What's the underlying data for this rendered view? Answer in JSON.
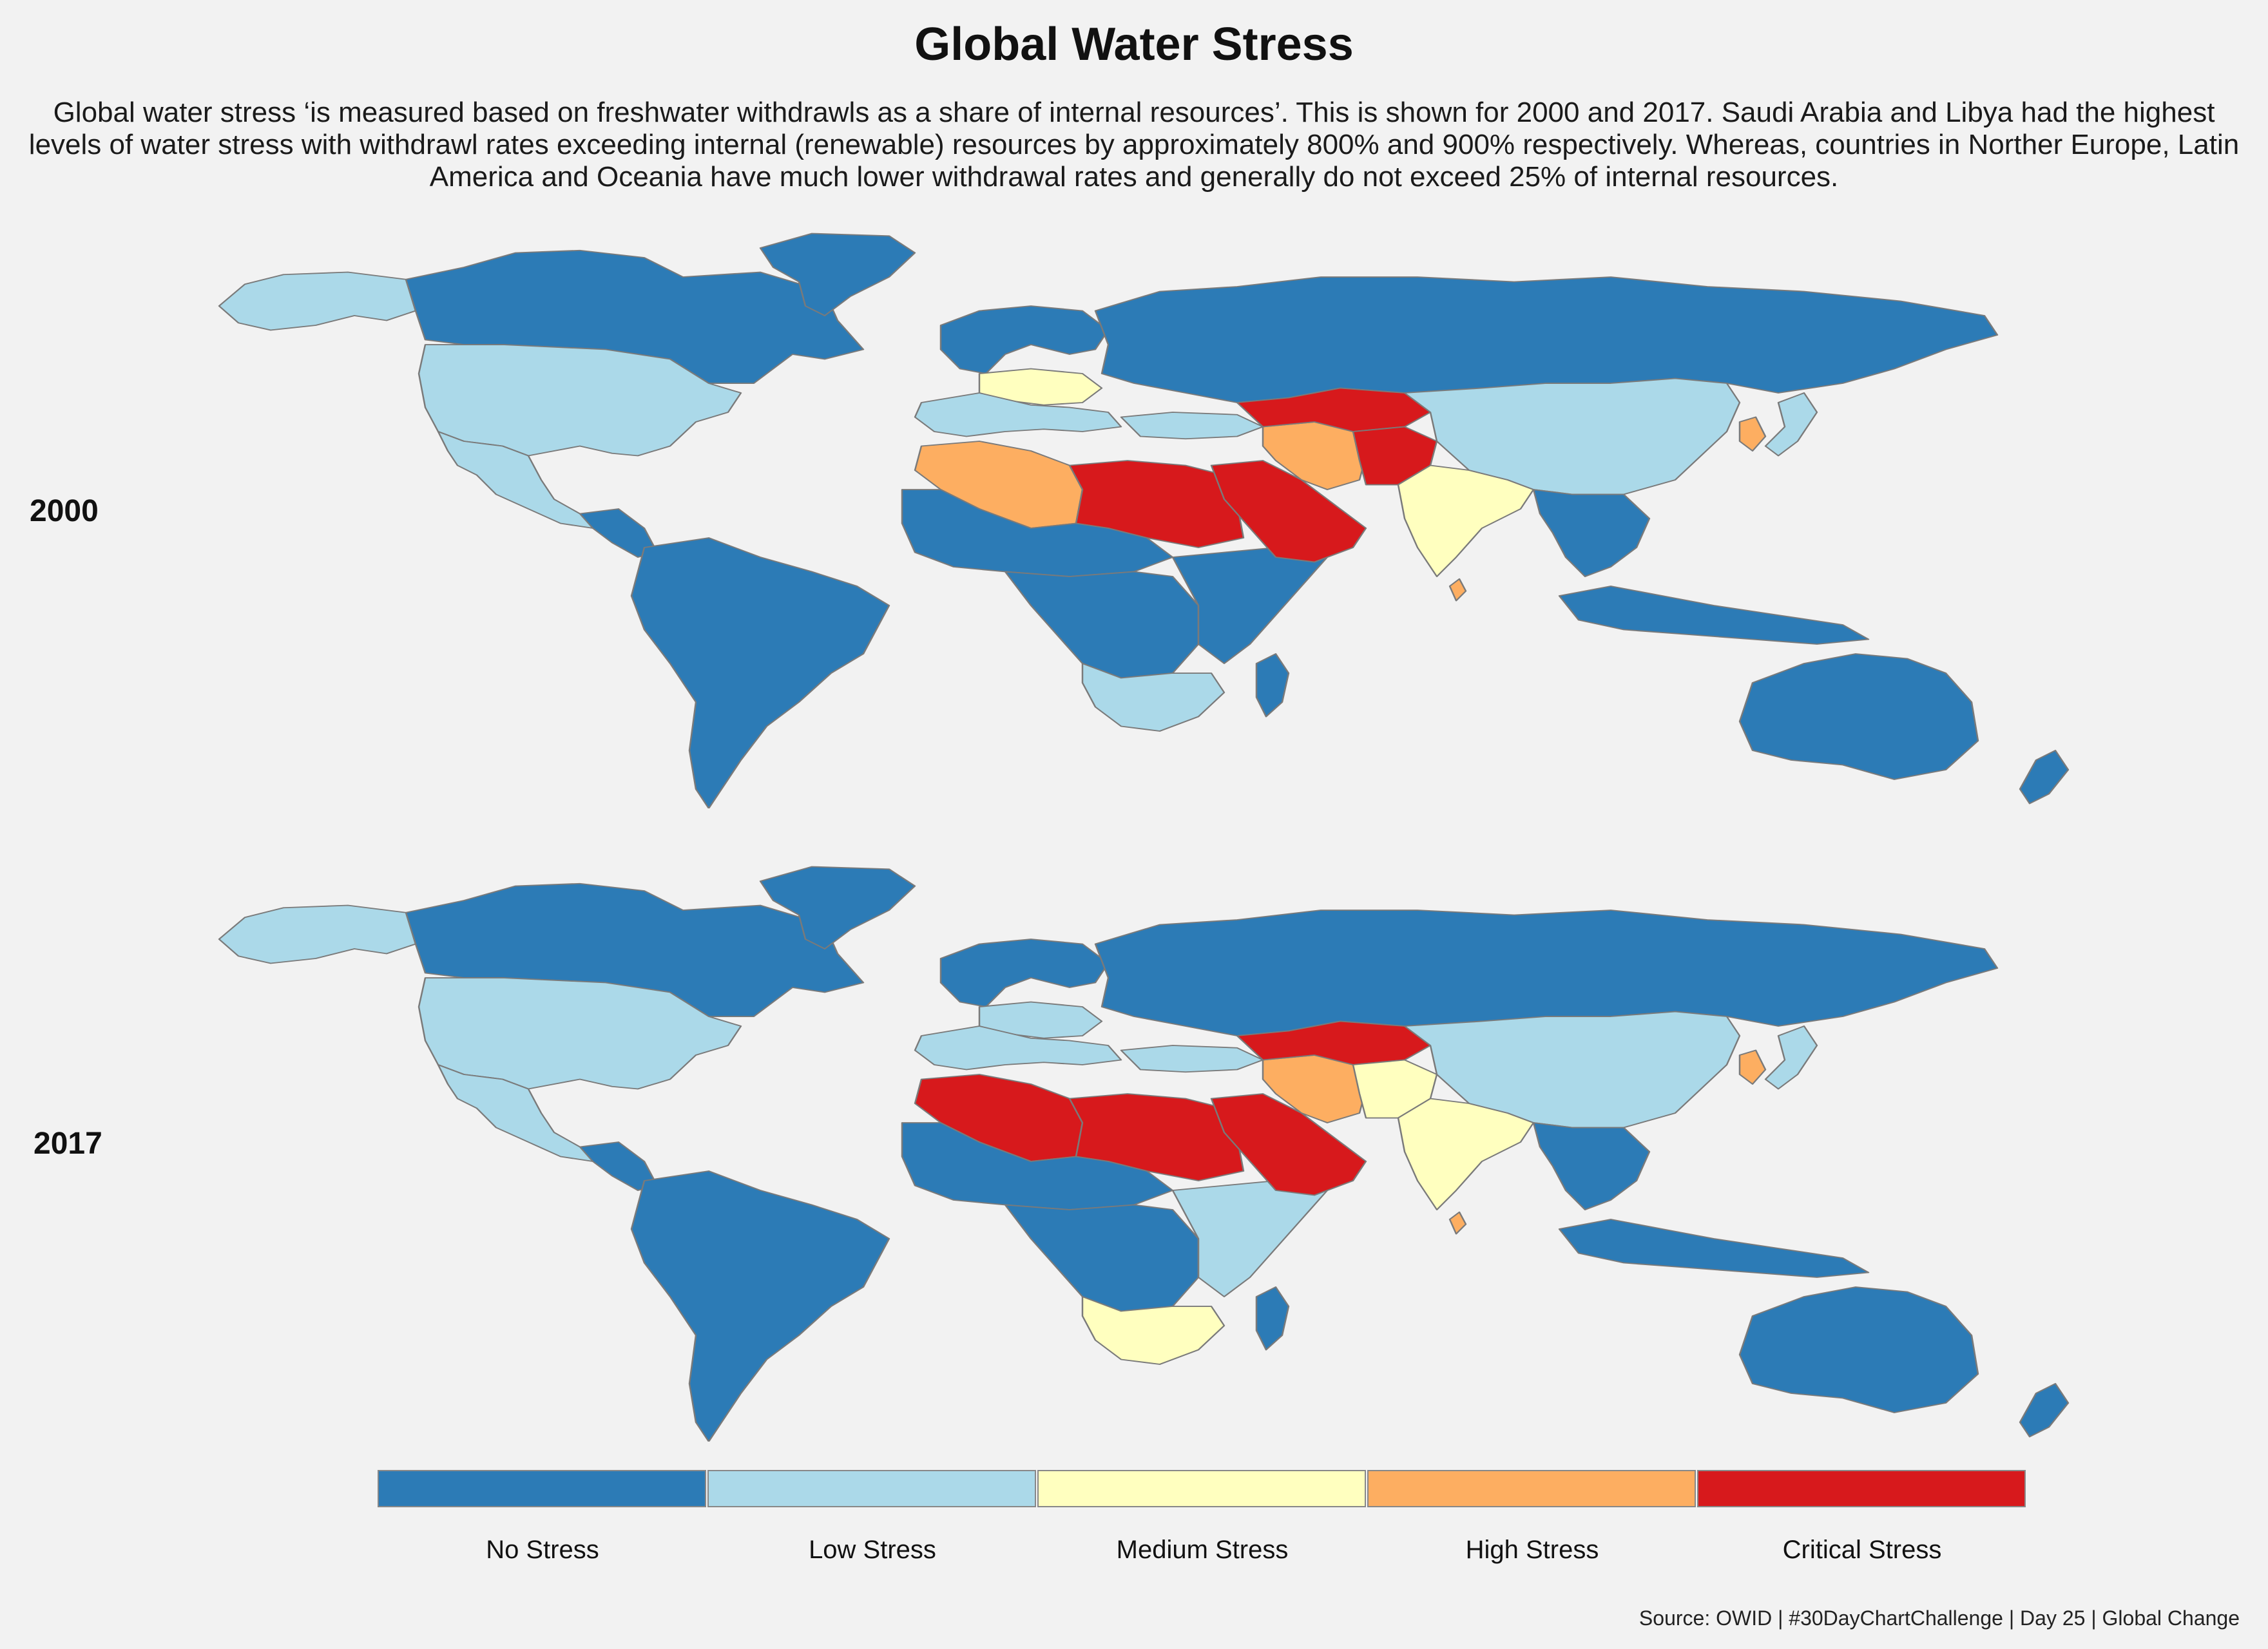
{
  "title": "Global Water Stress",
  "subtitle": "Global water stress ‘is measured based on freshwater withdrawls as a share of internal resources’. This is shown for 2000 and 2017. Saudi Arabia and Libya had the highest levels of water stress with withdrawl rates exceeding internal (renewable) resources by approximately 800% and 900% respectively. Whereas, countries in Norther Europe, Latin America and Oceania have much lower withdrawal rates and generally do not exceed 25% of internal resources.",
  "source": "Source: OWID | #30DayChartChallenge | Day 25 | Global Change",
  "colors": {
    "no_stress": "#2c7bb6",
    "low_stress": "#abd9e9",
    "medium_stress": "#ffffbf",
    "high_stress": "#fdae61",
    "critical_stress": "#d7191c",
    "border": "#7a7a7a",
    "background": "#f2f2f2"
  },
  "legend": [
    {
      "label": "No Stress",
      "color": "#2c7bb6"
    },
    {
      "label": "Low Stress",
      "color": "#abd9e9"
    },
    {
      "label": "Medium Stress",
      "color": "#ffffbf"
    },
    {
      "label": "High Stress",
      "color": "#fdae61"
    },
    {
      "label": "Critical Stress",
      "color": "#d7191c"
    }
  ],
  "panels": [
    {
      "year": "2000",
      "regions": {
        "alaska": "low_stress",
        "canada": "no_stress",
        "greenland": "no_stress",
        "usa": "low_stress",
        "mexico": "low_stress",
        "central_america": "no_stress",
        "south_america": "no_stress",
        "europe_north": "no_stress",
        "europe_central": "medium_stress",
        "europe_south": "low_stress",
        "russia": "no_stress",
        "north_africa_west": "high_stress",
        "libya_egypt": "critical_stress",
        "sahel": "no_stress",
        "central_africa": "no_stress",
        "east_africa": "no_stress",
        "southern_africa": "low_stress",
        "madagascar": "no_stress",
        "arabia": "critical_stress",
        "iran": "high_stress",
        "central_asia": "critical_stress",
        "pakistan": "critical_stress",
        "india": "medium_stress",
        "china": "low_stress",
        "korea": "high_stress",
        "japan": "low_stress",
        "southeast_asia": "no_stress",
        "indonesia": "no_stress",
        "australia": "no_stress",
        "new_zealand": "no_stress",
        "sri_lanka": "high_stress",
        "turkey": "low_stress"
      }
    },
    {
      "year": "2017",
      "regions": {
        "alaska": "low_stress",
        "canada": "no_stress",
        "greenland": "no_stress",
        "usa": "low_stress",
        "mexico": "low_stress",
        "central_america": "no_stress",
        "south_america": "no_stress",
        "europe_north": "no_stress",
        "europe_central": "low_stress",
        "europe_south": "low_stress",
        "russia": "no_stress",
        "north_africa_west": "critical_stress",
        "libya_egypt": "critical_stress",
        "sahel": "no_stress",
        "central_africa": "no_stress",
        "east_africa": "low_stress",
        "southern_africa": "medium_stress",
        "madagascar": "no_stress",
        "arabia": "critical_stress",
        "iran": "high_stress",
        "central_asia": "critical_stress",
        "pakistan": "medium_stress",
        "india": "medium_stress",
        "china": "low_stress",
        "korea": "high_stress",
        "japan": "low_stress",
        "southeast_asia": "no_stress",
        "indonesia": "no_stress",
        "australia": "no_stress",
        "new_zealand": "no_stress",
        "sri_lanka": "high_stress",
        "turkey": "low_stress"
      }
    }
  ]
}
